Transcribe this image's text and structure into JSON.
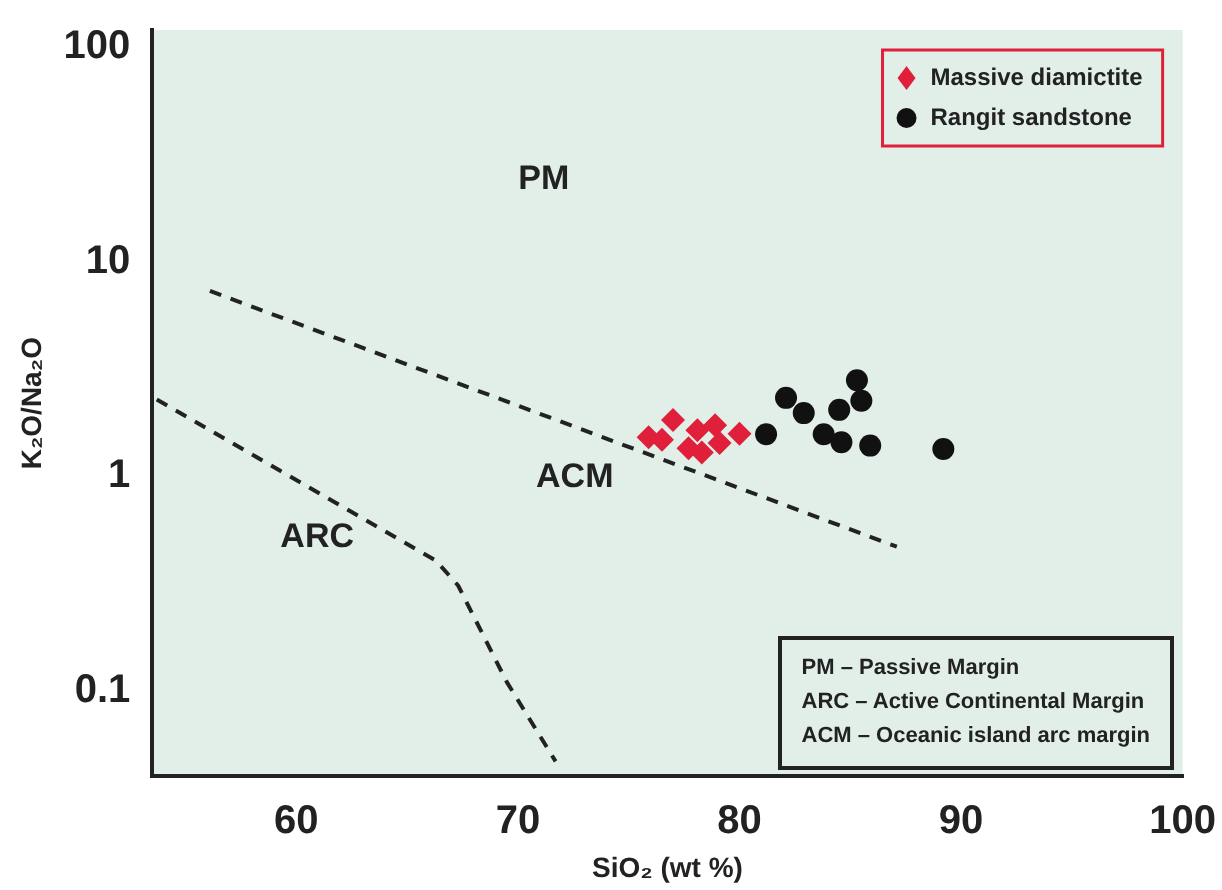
{
  "chart_data": {
    "type": "scatter",
    "xlabel": "SiO₂ (wt %)",
    "ylabel": "K₂O/Na₂O",
    "log": "y",
    "xlim": [
      53.5,
      100
    ],
    "xticks": [
      60,
      70,
      80,
      90,
      100
    ],
    "ylim": [
      0.04,
      120
    ],
    "yticks": [
      0.1,
      1,
      10,
      100
    ],
    "grid": false,
    "legend": "top right",
    "series": [
      {
        "name": "Massive diamictite",
        "color": "#e0203a",
        "marker": "diamond",
        "x": [
          75.9,
          76.5,
          77.0,
          77.7,
          78.1,
          78.3,
          78.9,
          79.1,
          80.0
        ],
        "values": [
          1.52,
          1.48,
          1.83,
          1.35,
          1.64,
          1.29,
          1.73,
          1.43,
          1.58
        ]
      },
      {
        "name": "Rangit sandstone",
        "color": "#111111",
        "marker": "circle",
        "x": [
          81.2,
          82.1,
          82.9,
          83.8,
          84.5,
          84.6,
          85.3,
          85.5,
          85.9,
          89.2
        ],
        "values": [
          1.57,
          2.32,
          1.97,
          1.57,
          2.04,
          1.44,
          2.8,
          2.25,
          1.39,
          1.34
        ]
      },
      {
        "type": "line",
        "color": "#222222",
        "line_style": "dashed",
        "marker": "none",
        "x": [
          56.1,
          87.1
        ],
        "values": [
          7.3,
          0.47
        ]
      },
      {
        "type": "line",
        "color": "#222222",
        "line_style": "dashed",
        "marker": "none",
        "x": [
          53.7,
          66.3,
          67.3,
          69.5,
          71.7
        ],
        "values": [
          2.28,
          0.405,
          0.31,
          0.11,
          0.047
        ]
      }
    ],
    "annotations": [
      "PM",
      "ACM",
      "ARC",
      "PM  – Passive Margin",
      "ARC  – Active Continental Margin",
      "ACM  – Oceanic island arc margin"
    ]
  }
}
